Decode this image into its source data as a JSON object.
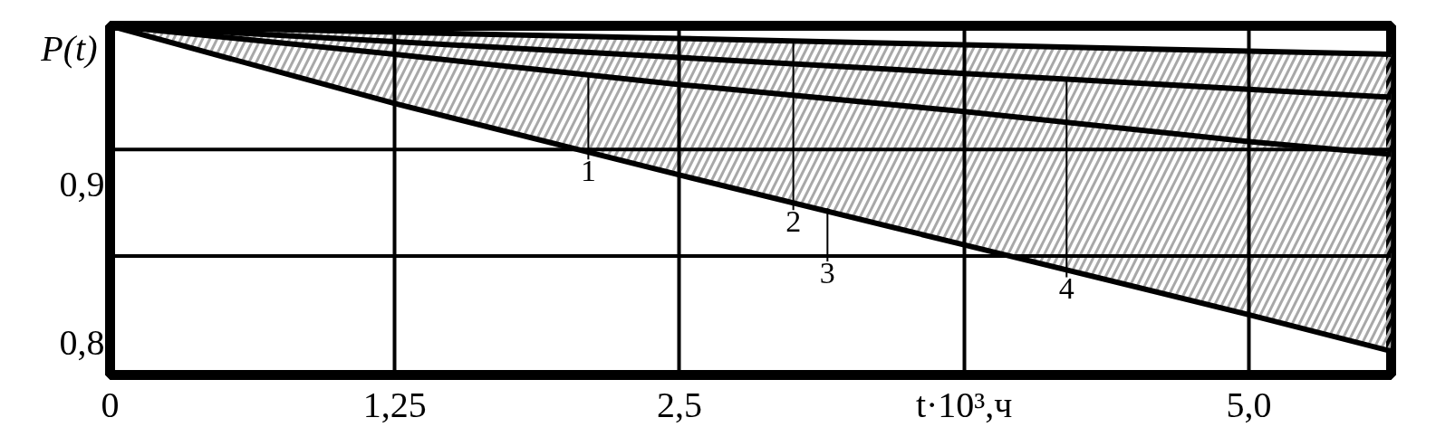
{
  "chart_data": {
    "type": "line",
    "xlabel": "t·10³,ч",
    "ylabel": "P(t)",
    "x": [
      0,
      1.25,
      2.5,
      3.75,
      5.0,
      5.625
    ],
    "series": [
      {
        "color": "#000000",
        "values": [
          1.0,
          0.982,
          0.963,
          0.946,
          0.927,
          0.919
        ],
        "lower": [
          1.0,
          0.951,
          0.906,
          0.862,
          0.818,
          0.795
        ],
        "upper": [
          1.0,
          0.996,
          0.992,
          0.988,
          0.984,
          0.982
        ]
      },
      {
        "color": "#000000",
        "values": [
          1.0,
          0.996,
          0.992,
          0.988,
          0.984,
          0.982
        ]
      },
      {
        "color": "#000000",
        "values": [
          1.0,
          0.951,
          0.906,
          0.862,
          0.818,
          0.795
        ]
      },
      {
        "color": "#000000",
        "values": [
          1.0,
          0.99,
          0.98,
          0.97,
          0.96,
          0.955
        ]
      }
    ],
    "xlim": [
      0,
      5.625
    ],
    "ylim": [
      0.78,
      1.0
    ],
    "xticks": [
      0,
      {
        "value": 1.25,
        "label": "1,25"
      },
      {
        "value": 2.5,
        "label": "2,5"
      },
      {
        "value": 3.75,
        "label": null
      },
      {
        "value": 5.0,
        "label": "5,0"
      }
    ],
    "yticks": [
      {
        "value": 0.8,
        "label": "0,8"
      },
      {
        "value": 0.9,
        "label": "0,9"
      }
    ],
    "grid": "x",
    "ref_lines": [
      {
        "axis": "y",
        "value": 0.922,
        "color": "#000000"
      },
      {
        "axis": "y",
        "value": 0.855,
        "color": "#000000"
      }
    ],
    "annotations": [
      {
        "text": "1",
        "x": 2.1,
        "y": 0.97
      },
      {
        "text": "2",
        "x": 3.0,
        "y": 0.99
      },
      {
        "text": "3",
        "x": 3.15,
        "y": 0.885
      },
      {
        "text": "4",
        "x": 4.2,
        "y": 0.966
      }
    ]
  }
}
